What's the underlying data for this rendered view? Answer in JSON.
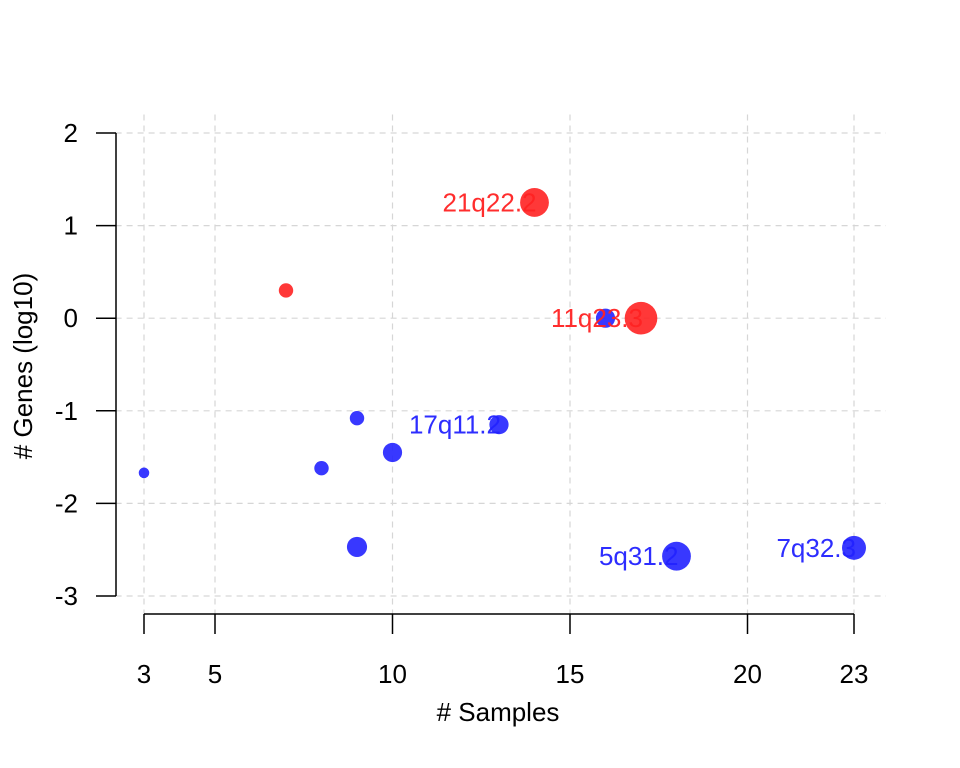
{
  "chart_data": {
    "type": "scatter",
    "xlabel": "# Samples",
    "ylabel": "# Genes (log10)",
    "xticks": [
      3,
      5,
      10,
      15,
      20,
      23
    ],
    "yticks": [
      -3,
      -2,
      -1,
      0,
      1,
      2
    ],
    "xlim": [
      2.2,
      23.9
    ],
    "ylim": [
      -3.2,
      2.2
    ],
    "grid": true,
    "colors": {
      "red": "#ff2222",
      "blue": "#2222ff"
    },
    "points": [
      {
        "x": 14,
        "y": 1.25,
        "size": 3,
        "color": "red",
        "label": "21q22.2"
      },
      {
        "x": 17,
        "y": 0.0,
        "size": 3.4,
        "color": "red",
        "label": "11q23.3"
      },
      {
        "x": 7,
        "y": 0.3,
        "size": 1.5,
        "color": "red",
        "label": ""
      },
      {
        "x": 16,
        "y": 0.0,
        "size": 2,
        "color": "blue",
        "label": ""
      },
      {
        "x": 13,
        "y": -1.15,
        "size": 2,
        "color": "blue",
        "label": "17q11.2"
      },
      {
        "x": 9,
        "y": -1.08,
        "size": 1.5,
        "color": "blue",
        "label": ""
      },
      {
        "x": 10,
        "y": -1.45,
        "size": 2,
        "color": "blue",
        "label": ""
      },
      {
        "x": 8,
        "y": -1.62,
        "size": 1.5,
        "color": "blue",
        "label": ""
      },
      {
        "x": 3,
        "y": -1.67,
        "size": 1.1,
        "color": "blue",
        "label": ""
      },
      {
        "x": 9,
        "y": -2.47,
        "size": 2.1,
        "color": "blue",
        "label": ""
      },
      {
        "x": 18,
        "y": -2.57,
        "size": 3,
        "color": "blue",
        "label": "5q31.2"
      },
      {
        "x": 23,
        "y": -2.48,
        "size": 2.5,
        "color": "blue",
        "label": "7q32.3"
      }
    ]
  }
}
